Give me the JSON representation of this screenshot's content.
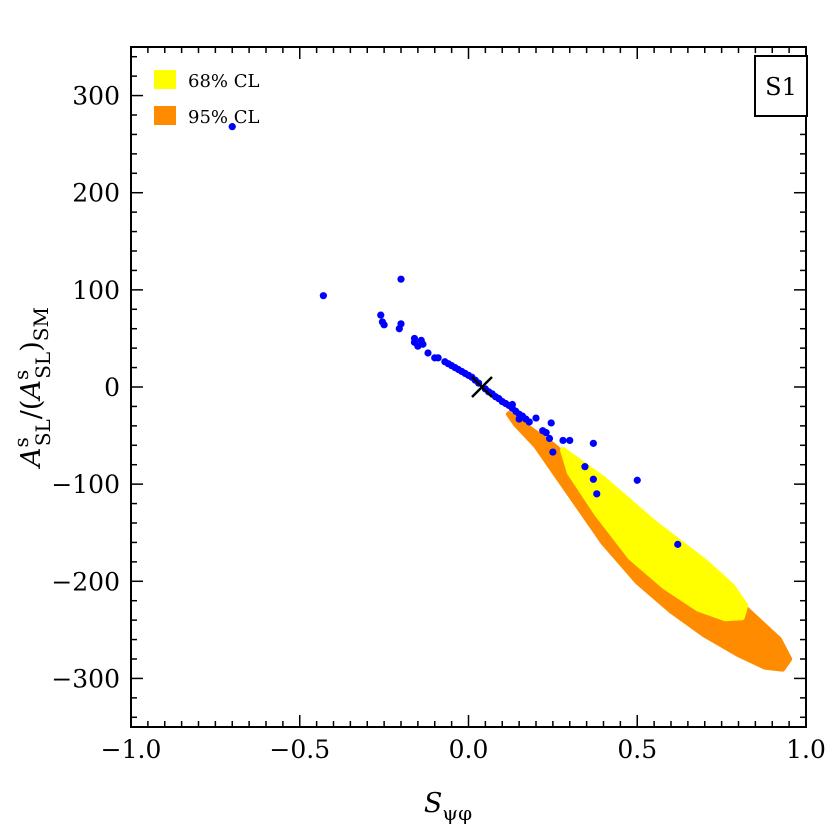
{
  "chart_data": {
    "type": "scatter",
    "title": "",
    "panel_label": "S1",
    "xlabel": "S",
    "xlabel_sub": "ψφ",
    "ylabel": "A",
    "ylabel_parts": {
      "main": "A",
      "sup1": "s",
      "sub1": "SL",
      "mid": "/(",
      "main2": "A",
      "sup2": "s",
      "sub2": "SL",
      "close": ")",
      "sub3": "SM"
    },
    "xlim": [
      -1.0,
      1.0
    ],
    "ylim": [
      -350,
      350
    ],
    "x_ticks": [
      -1.0,
      -0.5,
      0.0,
      0.5,
      1.0
    ],
    "x_tick_labels": [
      "−1.0",
      "−0.5",
      "0.0",
      "0.5",
      "1.0"
    ],
    "y_ticks": [
      300,
      200,
      100,
      0,
      -100,
      -200,
      -300
    ],
    "y_tick_labels": [
      "300",
      "200",
      "100",
      "0",
      "−100",
      "−200",
      "−300"
    ],
    "legend": [
      {
        "label": "68% CL",
        "color": "#ffff00"
      },
      {
        "label": "95% CL",
        "color": "#ff8c00"
      }
    ],
    "legend_position": "top-left",
    "colors": {
      "points": "#0000ff",
      "cl68": "#ffff00",
      "cl95": "#ff8c00",
      "marker": "#000000"
    },
    "sm_point": {
      "x": 0.04,
      "y": 0
    },
    "region_95": [
      [
        0.12,
        -28
      ],
      [
        0.25,
        -60
      ],
      [
        0.4,
        -105
      ],
      [
        0.55,
        -150
      ],
      [
        0.7,
        -195
      ],
      [
        0.82,
        -228
      ],
      [
        0.92,
        -260
      ],
      [
        0.95,
        -280
      ],
      [
        0.93,
        -290
      ],
      [
        0.88,
        -288
      ],
      [
        0.8,
        -275
      ],
      [
        0.7,
        -255
      ],
      [
        0.6,
        -230
      ],
      [
        0.5,
        -200
      ],
      [
        0.4,
        -160
      ],
      [
        0.3,
        -110
      ],
      [
        0.2,
        -60
      ],
      [
        0.14,
        -38
      ]
    ],
    "region_68": [
      [
        0.28,
        -65
      ],
      [
        0.4,
        -95
      ],
      [
        0.55,
        -140
      ],
      [
        0.7,
        -180
      ],
      [
        0.78,
        -205
      ],
      [
        0.82,
        -225
      ],
      [
        0.81,
        -237
      ],
      [
        0.76,
        -238
      ],
      [
        0.68,
        -228
      ],
      [
        0.58,
        -205
      ],
      [
        0.48,
        -175
      ],
      [
        0.38,
        -130
      ],
      [
        0.3,
        -88
      ]
    ],
    "points": [
      {
        "x": -0.7,
        "y": 268
      },
      {
        "x": -0.43,
        "y": 94
      },
      {
        "x": -0.2,
        "y": 111
      },
      {
        "x": -0.26,
        "y": 74
      },
      {
        "x": -0.255,
        "y": 67
      },
      {
        "x": -0.25,
        "y": 64
      },
      {
        "x": -0.2,
        "y": 65
      },
      {
        "x": -0.205,
        "y": 60
      },
      {
        "x": -0.16,
        "y": 50
      },
      {
        "x": -0.14,
        "y": 48
      },
      {
        "x": -0.135,
        "y": 44
      },
      {
        "x": -0.16,
        "y": 46
      },
      {
        "x": -0.15,
        "y": 42
      },
      {
        "x": -0.12,
        "y": 35
      },
      {
        "x": -0.1,
        "y": 30
      },
      {
        "x": -0.09,
        "y": 30
      },
      {
        "x": -0.07,
        "y": 26
      },
      {
        "x": -0.06,
        "y": 24
      },
      {
        "x": -0.05,
        "y": 22
      },
      {
        "x": -0.04,
        "y": 20
      },
      {
        "x": -0.03,
        "y": 18
      },
      {
        "x": -0.02,
        "y": 16
      },
      {
        "x": -0.01,
        "y": 14
      },
      {
        "x": 0.0,
        "y": 12
      },
      {
        "x": 0.01,
        "y": 10
      },
      {
        "x": 0.02,
        "y": 7
      },
      {
        "x": 0.03,
        "y": 4
      },
      {
        "x": 0.05,
        "y": -2
      },
      {
        "x": 0.06,
        "y": -5
      },
      {
        "x": 0.07,
        "y": -7
      },
      {
        "x": 0.08,
        "y": -10
      },
      {
        "x": 0.09,
        "y": -12
      },
      {
        "x": 0.1,
        "y": -15
      },
      {
        "x": 0.11,
        "y": -17
      },
      {
        "x": 0.12,
        "y": -19
      },
      {
        "x": 0.13,
        "y": -22
      },
      {
        "x": 0.14,
        "y": -25
      },
      {
        "x": 0.15,
        "y": -28
      },
      {
        "x": 0.16,
        "y": -30
      },
      {
        "x": 0.17,
        "y": -33
      },
      {
        "x": 0.13,
        "y": -18
      },
      {
        "x": 0.15,
        "y": -33
      },
      {
        "x": 0.18,
        "y": -36
      },
      {
        "x": 0.2,
        "y": -32
      },
      {
        "x": 0.22,
        "y": -45
      },
      {
        "x": 0.23,
        "y": -47
      },
      {
        "x": 0.245,
        "y": -37
      },
      {
        "x": 0.24,
        "y": -53
      },
      {
        "x": 0.28,
        "y": -55
      },
      {
        "x": 0.3,
        "y": -55
      },
      {
        "x": 0.25,
        "y": -67
      },
      {
        "x": 0.37,
        "y": -58
      },
      {
        "x": 0.345,
        "y": -82
      },
      {
        "x": 0.37,
        "y": -95
      },
      {
        "x": 0.38,
        "y": -110
      },
      {
        "x": 0.5,
        "y": -96
      },
      {
        "x": 0.62,
        "y": -162
      }
    ]
  }
}
